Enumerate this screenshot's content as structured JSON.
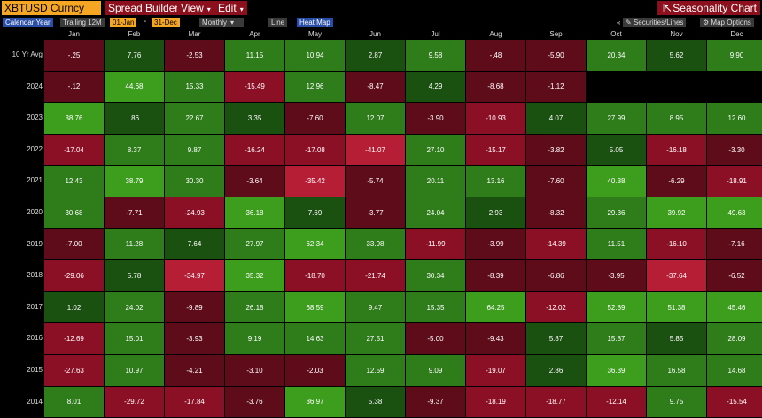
{
  "header": {
    "ticker": "XBTUSD Curncy",
    "menu_spread": "Spread Builder",
    "menu_view": "View",
    "menu_edit": "Edit",
    "chart_title": "Seasonality Chart"
  },
  "toolbar": {
    "calendar_year": "Calendar Year",
    "trailing": "Trailing 12M",
    "start": "01-Jan",
    "dash": "-",
    "end": "31-Dec",
    "period": "Monthly",
    "line": "Line",
    "heatmap": "Heat Map",
    "collapse": "«",
    "securities": "Securities/Lines",
    "map_options": "Map Options"
  },
  "months": [
    "Jan",
    "Feb",
    "Mar",
    "Apr",
    "May",
    "Jun",
    "Jul",
    "Aug",
    "Sep",
    "Oct",
    "Nov",
    "Dec"
  ],
  "colors": {
    "bright_green": "#3d9e1e",
    "mid_green": "#2e7d1a",
    "dark_green": "#1a5010",
    "bright_red": "#b51e35",
    "mid_red": "#8b1025",
    "dark_red": "#5e0c1a"
  },
  "rows": [
    {
      "label": "10 Yr Avg",
      "values": [
        "-.25",
        "7.76",
        "-2.53",
        "11.15",
        "10.94",
        "2.87",
        "9.58",
        "-.48",
        "-5.90",
        "20.34",
        "5.62",
        "9.90"
      ]
    },
    {
      "label": "2024",
      "values": [
        "-.12",
        "44.68",
        "15.33",
        "-15.49",
        "12.96",
        "-8.47",
        "4.29",
        "-8.68",
        "-1.12",
        "",
        "",
        ""
      ]
    },
    {
      "label": "2023",
      "values": [
        "38.76",
        ".86",
        "22.67",
        "3.35",
        "-7.60",
        "12.07",
        "-3.90",
        "-10.93",
        "4.07",
        "27.99",
        "8.95",
        "12.60"
      ]
    },
    {
      "label": "2022",
      "values": [
        "-17.04",
        "8.37",
        "9.87",
        "-16.24",
        "-17.08",
        "-41.07",
        "27.10",
        "-15.17",
        "-3.82",
        "5.05",
        "-16.18",
        "-3.30"
      ]
    },
    {
      "label": "2021",
      "values": [
        "12.43",
        "38.79",
        "30.30",
        "-3.64",
        "-35.42",
        "-5.74",
        "20.11",
        "13.16",
        "-7.60",
        "40.38",
        "-6.29",
        "-18.91"
      ]
    },
    {
      "label": "2020",
      "values": [
        "30.68",
        "-7.71",
        "-24.93",
        "36.18",
        "7.69",
        "-3.77",
        "24.04",
        "2.93",
        "-8.32",
        "29.36",
        "39.92",
        "49.63"
      ]
    },
    {
      "label": "2019",
      "values": [
        "-7.00",
        "11.28",
        "7.64",
        "27.97",
        "62.34",
        "33.98",
        "-11.99",
        "-3.99",
        "-14.39",
        "11.51",
        "-16.10",
        "-7.16"
      ]
    },
    {
      "label": "2018",
      "values": [
        "-29.06",
        "5.78",
        "-34.97",
        "35.32",
        "-18.70",
        "-21.74",
        "30.34",
        "-8.39",
        "-6.86",
        "-3.95",
        "-37.64",
        "-6.52"
      ]
    },
    {
      "label": "2017",
      "values": [
        "1.02",
        "24.02",
        "-9.89",
        "26.18",
        "68.59",
        "9.47",
        "15.35",
        "64.25",
        "-12.02",
        "52.89",
        "51.38",
        "45.46"
      ]
    },
    {
      "label": "2016",
      "values": [
        "-12.69",
        "15.01",
        "-3.93",
        "9.19",
        "14.63",
        "27.51",
        "-5.00",
        "-9.43",
        "5.87",
        "15.87",
        "5.85",
        "28.09"
      ]
    },
    {
      "label": "2015",
      "values": [
        "-27.63",
        "10.97",
        "-4.21",
        "-3.10",
        "-2.03",
        "12.59",
        "9.09",
        "-19.07",
        "2.86",
        "36.39",
        "16.58",
        "14.68"
      ]
    },
    {
      "label": "2014",
      "values": [
        "8.01",
        "-29.72",
        "-17.84",
        "-3.76",
        "36.97",
        "5.38",
        "-9.37",
        "-18.19",
        "-18.77",
        "-12.14",
        "9.75",
        "-15.54"
      ]
    }
  ]
}
